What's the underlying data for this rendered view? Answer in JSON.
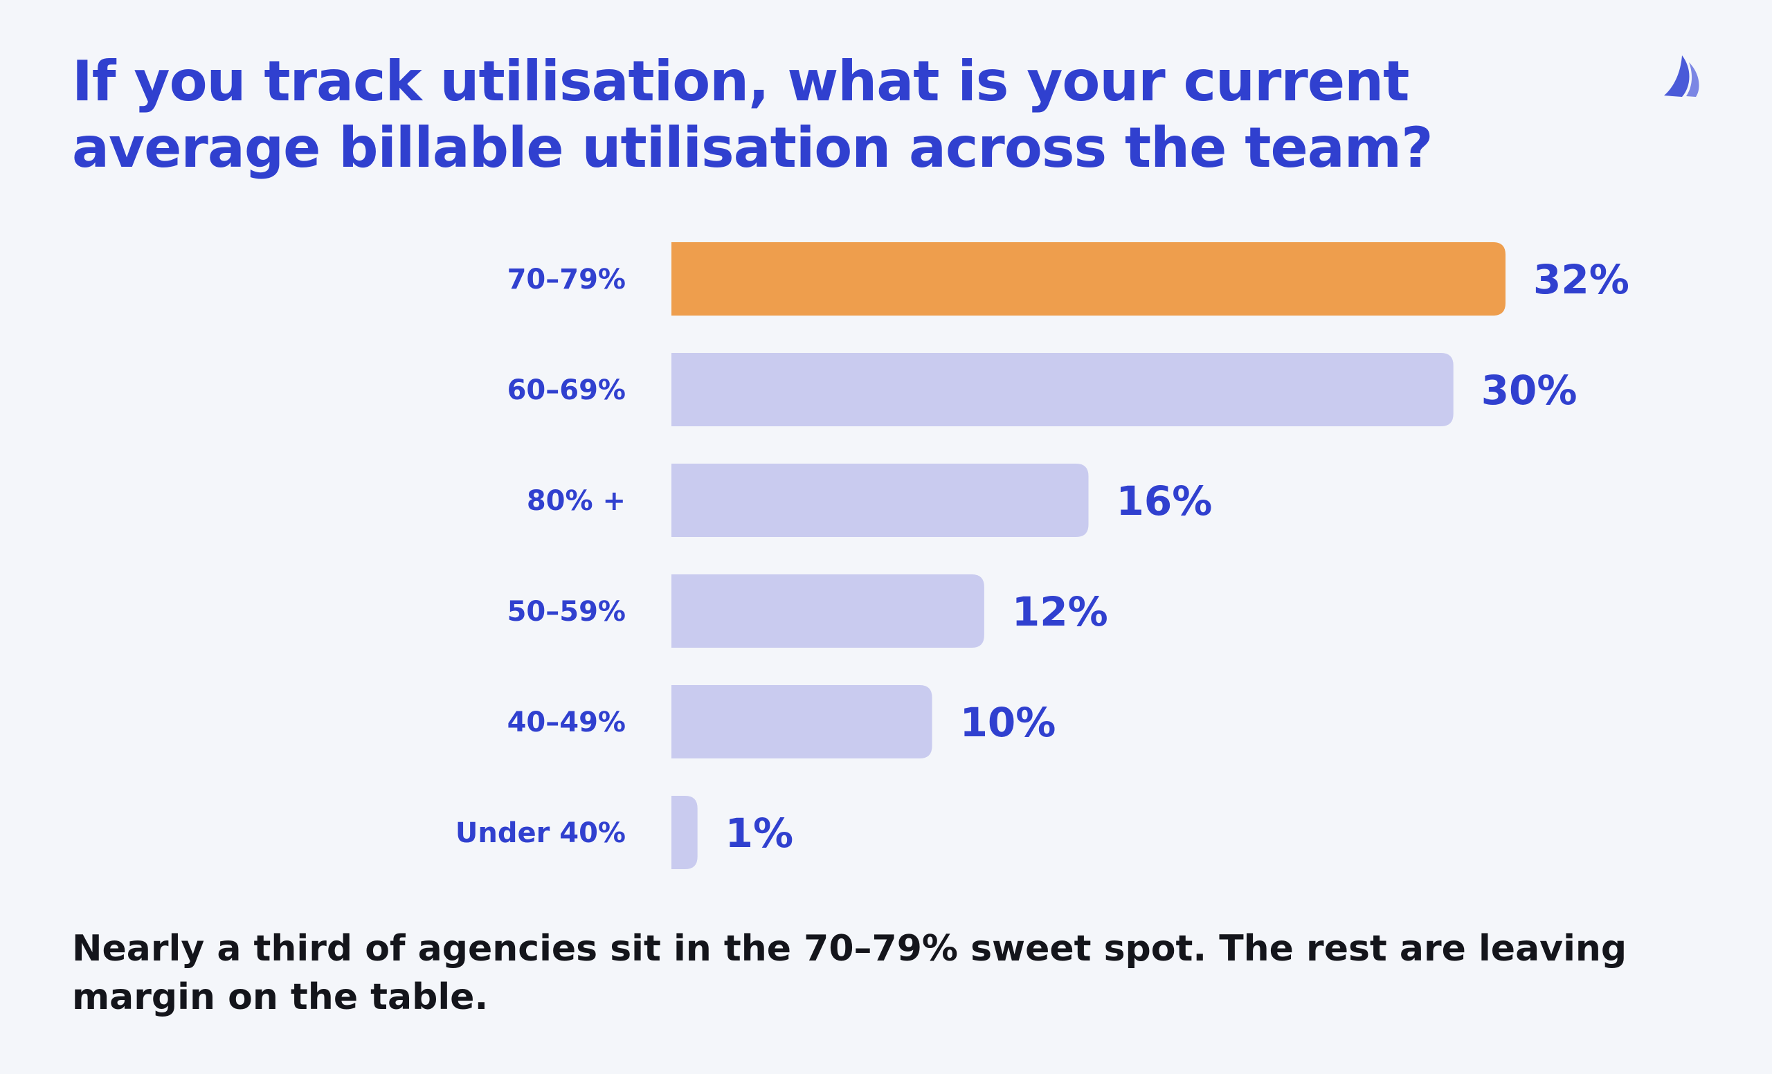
{
  "header": {
    "title": "If you track utilisation, what is your current average billable utilisation across the team?"
  },
  "logo": {
    "icon": "sail-logo-icon",
    "color": "#4a5ad8"
  },
  "chart_data": {
    "type": "bar",
    "orientation": "horizontal",
    "categories": [
      "70–79%",
      "60–69%",
      "80% +",
      "50–59%",
      "40–49%",
      "Under 40%"
    ],
    "values": [
      32,
      30,
      16,
      12,
      10,
      1
    ],
    "value_labels": [
      "32%",
      "30%",
      "16%",
      "12%",
      "10%",
      "1%"
    ],
    "unit": "%",
    "highlight_index": 0,
    "xlim": [
      0,
      32
    ],
    "grid": false,
    "legend": "none"
  },
  "colors": {
    "highlight_bar": "#ee9e4d",
    "bar": "#c9cbef",
    "text_accent": "#3040cf",
    "takeaway_text": "#14151b",
    "background": "#f4f6fa"
  },
  "footer": {
    "takeaway": "Nearly a third of agencies sit in the 70–79% sweet spot. The rest are leaving margin on the table."
  }
}
